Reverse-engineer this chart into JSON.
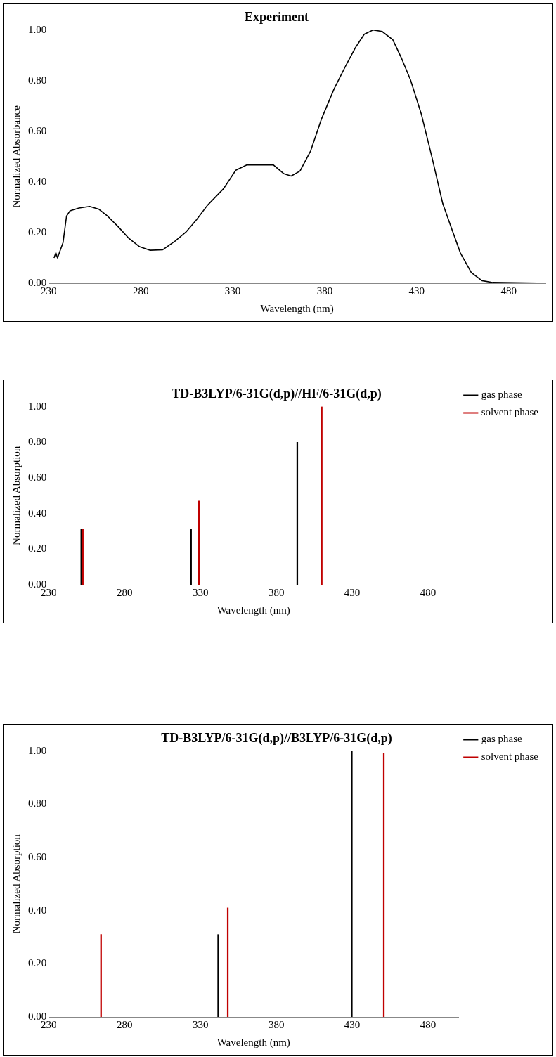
{
  "chart_data": [
    {
      "type": "line",
      "title": "Experiment",
      "xlabel": "Wavelength (nm)",
      "ylabel": "Normalized Absorbance",
      "xlim": [
        230,
        500
      ],
      "xticks": [
        230,
        280,
        330,
        380,
        430,
        480
      ],
      "ylim": [
        0,
        1
      ],
      "yticks": [
        {
          "value": 0,
          "label": "0.00"
        },
        {
          "value": 0.2,
          "label": "0.20"
        },
        {
          "value": 0.4,
          "label": "0.40"
        },
        {
          "value": 0.6,
          "label": "0.60"
        },
        {
          "value": 0.8,
          "label": "0.80"
        },
        {
          "value": 1,
          "label": "1.00"
        }
      ],
      "grid": false,
      "legend": false,
      "marker": "none",
      "series": [
        {
          "color": "#000000",
          "x": [
            232.9,
            233.9,
            234.8,
            237.8,
            239.7,
            241.6,
            246.5,
            252.3,
            257.1,
            262,
            267.8,
            273.6,
            279.4,
            285.2,
            292,
            298.8,
            304.6,
            310.4,
            316.2,
            324.9,
            331.7,
            337.6,
            352.1,
            357.9,
            361.8,
            366.6,
            372.4,
            378.3,
            385.1,
            391.9,
            396.7,
            401.5,
            406.4,
            411.2,
            417,
            421.9,
            426.7,
            432.5,
            438.4,
            444.2,
            449,
            453.8,
            459.7,
            465.5,
            471.3,
            500
          ],
          "values": [
            0.1,
            0.12,
            0.1,
            0.16,
            0.265,
            0.286,
            0.297,
            0.303,
            0.293,
            0.265,
            0.223,
            0.177,
            0.144,
            0.13,
            0.132,
            0.167,
            0.202,
            0.251,
            0.307,
            0.372,
            0.446,
            0.467,
            0.467,
            0.432,
            0.423,
            0.443,
            0.523,
            0.649,
            0.767,
            0.865,
            0.93,
            0.983,
            1,
            0.994,
            0.962,
            0.886,
            0.802,
            0.669,
            0.495,
            0.314,
            0.216,
            0.119,
            0.042,
            0.01,
            0.003,
            0
          ]
        }
      ]
    },
    {
      "type": "bar",
      "title": "TD-B3LYP/6-31G(d,p)//HF/6-31G(d,p)",
      "xlabel": "Wavelength (nm)",
      "ylabel": "Normalized Absorption",
      "xlim": [
        230,
        500
      ],
      "xticks": [
        230,
        280,
        330,
        380,
        430,
        480
      ],
      "ylim": [
        0,
        1
      ],
      "yticks": [
        {
          "value": 0,
          "label": "0.00"
        },
        {
          "value": 0.2,
          "label": "0.20"
        },
        {
          "value": 0.4,
          "label": "0.40"
        },
        {
          "value": 0.6,
          "label": "0.60"
        },
        {
          "value": 0.8,
          "label": "0.80"
        },
        {
          "value": 1,
          "label": "1.00"
        }
      ],
      "grid": false,
      "legend": "top right",
      "series": [
        {
          "name": "gas phase",
          "color": "#000000",
          "x": [
            251.5,
            323.8,
            393.8
          ],
          "values": [
            0.31,
            0.31,
            0.8
          ]
        },
        {
          "name": "solvent phase",
          "color": "#c00000",
          "x": [
            252.5,
            329,
            409.9
          ],
          "values": [
            0.31,
            0.47,
            1
          ]
        }
      ]
    },
    {
      "type": "bar",
      "title": "TD-B3LYP/6-31G(d,p)//B3LYP/6-31G(d,p)",
      "xlabel": "Wavelength (nm)",
      "ylabel": "Normalized Absorption",
      "xlim": [
        230,
        500
      ],
      "xticks": [
        230,
        280,
        330,
        380,
        430,
        480
      ],
      "ylim": [
        0,
        1
      ],
      "yticks": [
        {
          "value": 0,
          "label": "0.00"
        },
        {
          "value": 0.2,
          "label": "0.20"
        },
        {
          "value": 0.4,
          "label": "0.40"
        },
        {
          "value": 0.6,
          "label": "0.60"
        },
        {
          "value": 0.8,
          "label": "0.80"
        },
        {
          "value": 1,
          "label": "1.00"
        }
      ],
      "grid": false,
      "legend": "top right",
      "series": [
        {
          "name": "gas phase",
          "color": "#000000",
          "x": [
            341.7,
            429.7
          ],
          "values": [
            0.31,
            1
          ]
        },
        {
          "name": "solvent phase",
          "color": "#c00000",
          "x": [
            264.5,
            348,
            450.8
          ],
          "values": [
            0.31,
            0.41,
            0.99
          ]
        }
      ]
    }
  ]
}
